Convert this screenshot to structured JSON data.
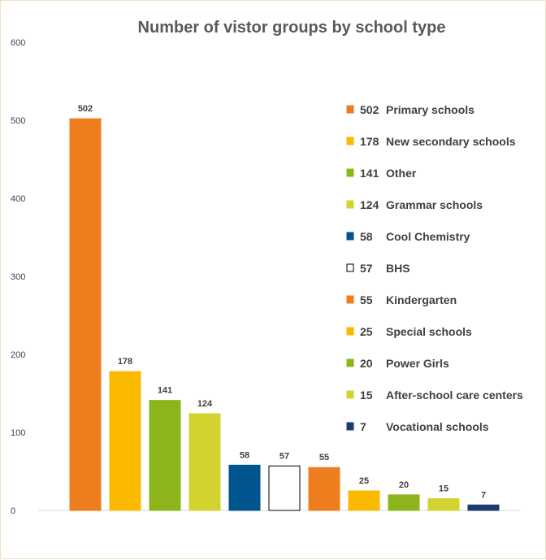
{
  "chart_data": {
    "type": "bar",
    "title": "Number of vistor groups by school type",
    "xlabel": "",
    "ylabel": "",
    "ylim": [
      0,
      600
    ],
    "yticks": [
      0,
      100,
      200,
      300,
      400,
      500,
      600
    ],
    "grid": false,
    "legend_position": "right",
    "categories": [
      "Primary schools",
      "New secondary schools",
      "Other",
      "Grammar schools",
      "Cool Chemistry",
      "BHS",
      "Kindergarten",
      "Special schools",
      "Power Girls",
      "After-school care centers",
      "Vocational schools"
    ],
    "values": [
      502,
      178,
      141,
      124,
      58,
      57,
      55,
      25,
      20,
      15,
      7
    ],
    "colors": [
      "#ee7d1e",
      "#fbb900",
      "#8cb51c",
      "#d3d32f",
      "#00558f",
      "#ffffff",
      "#ee7d1e",
      "#fbb900",
      "#8cb51c",
      "#d3d32f",
      "#1f3a6e"
    ],
    "outline_colors": [
      "#ee7d1e",
      "#fbb900",
      "#8cb51c",
      "#d3d32f",
      "#00558f",
      "#000000",
      "#ee7d1e",
      "#fbb900",
      "#8cb51c",
      "#d3d32f",
      "#1f3a6e"
    ]
  }
}
